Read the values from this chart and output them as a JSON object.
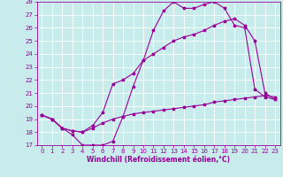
{
  "title": "",
  "xlabel": "Windchill (Refroidissement éolien,°C)",
  "xlim": [
    -0.5,
    23.5
  ],
  "ylim": [
    17,
    28
  ],
  "yticks": [
    17,
    18,
    19,
    20,
    21,
    22,
    23,
    24,
    25,
    26,
    27,
    28
  ],
  "xticks": [
    0,
    1,
    2,
    3,
    4,
    5,
    6,
    7,
    8,
    9,
    10,
    11,
    12,
    13,
    14,
    15,
    16,
    17,
    18,
    19,
    20,
    21,
    22,
    23
  ],
  "background_color": "#c8ecec",
  "grid_color": "#ffffff",
  "line_color": "#990099",
  "line1_x": [
    0,
    1,
    2,
    3,
    4,
    5,
    6,
    7,
    8,
    9,
    10,
    11,
    12,
    13,
    14,
    15,
    16,
    17,
    18,
    19,
    20,
    21,
    22,
    23
  ],
  "line1_y": [
    19.3,
    19.0,
    18.3,
    17.8,
    17.0,
    17.0,
    17.0,
    17.3,
    19.2,
    21.5,
    23.5,
    25.8,
    27.3,
    28.0,
    27.5,
    27.5,
    27.8,
    28.0,
    27.5,
    26.2,
    26.0,
    21.3,
    20.7,
    20.5
  ],
  "line2_x": [
    0,
    1,
    2,
    3,
    4,
    5,
    6,
    7,
    8,
    9,
    10,
    11,
    12,
    13,
    14,
    15,
    16,
    17,
    18,
    19,
    20,
    21,
    22,
    23
  ],
  "line2_y": [
    19.3,
    19.0,
    18.3,
    18.1,
    18.0,
    18.5,
    19.5,
    21.7,
    22.0,
    22.5,
    23.5,
    24.0,
    24.5,
    25.0,
    25.3,
    25.5,
    25.8,
    26.2,
    26.5,
    26.7,
    26.2,
    25.0,
    21.0,
    20.5
  ],
  "line3_x": [
    0,
    1,
    2,
    3,
    4,
    5,
    6,
    7,
    8,
    9,
    10,
    11,
    12,
    13,
    14,
    15,
    16,
    17,
    18,
    19,
    20,
    21,
    22,
    23
  ],
  "line3_y": [
    19.3,
    19.0,
    18.3,
    18.1,
    18.0,
    18.3,
    18.7,
    19.0,
    19.2,
    19.4,
    19.5,
    19.6,
    19.7,
    19.8,
    19.9,
    20.0,
    20.1,
    20.3,
    20.4,
    20.5,
    20.6,
    20.7,
    20.8,
    20.7
  ],
  "tick_fontsize": 5,
  "xlabel_fontsize": 5.5,
  "marker": "*",
  "markersize": 2.5,
  "linewidth": 0.8
}
